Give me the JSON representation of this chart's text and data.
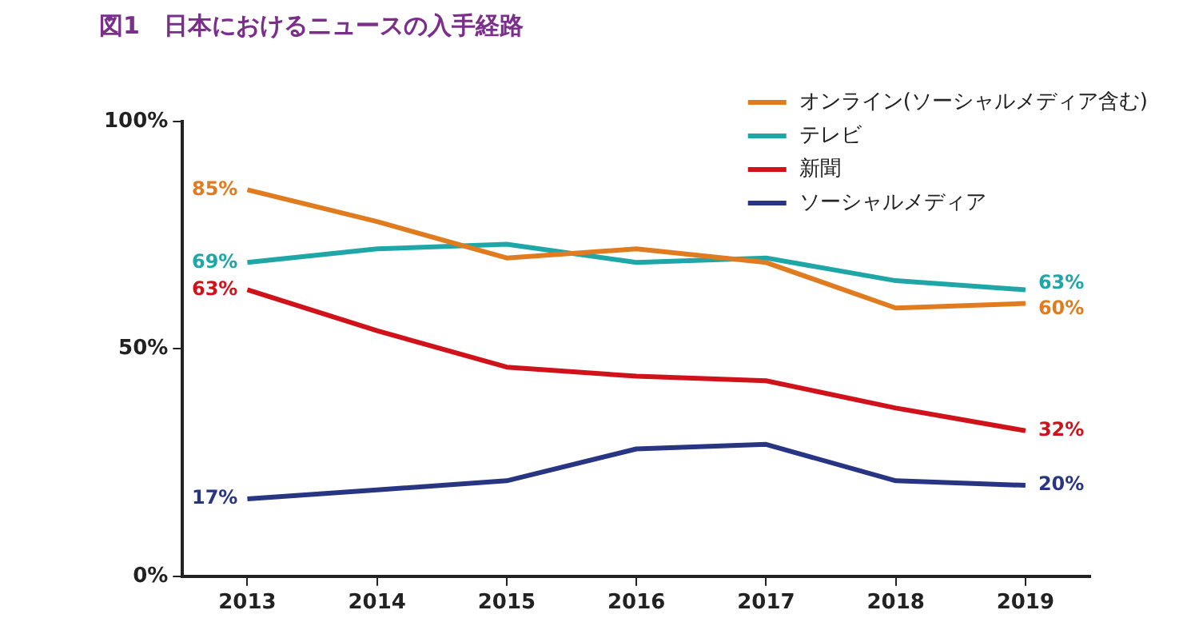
{
  "chart_data": {
    "type": "line",
    "title": "図1　日本におけるニュースの入手経路",
    "categories": [
      "2013",
      "2014",
      "2015",
      "2016",
      "2017",
      "2018",
      "2019"
    ],
    "series": [
      {
        "name": "オンライン(ソーシャルメディア含む)",
        "color": "#e07b1f",
        "values": [
          85,
          78,
          70,
          72,
          69,
          59,
          60
        ],
        "value_labels": [
          "85%",
          null,
          null,
          null,
          null,
          null,
          "60%"
        ]
      },
      {
        "name": "テレビ",
        "color": "#1fa6a6",
        "values": [
          69,
          72,
          73,
          69,
          70,
          65,
          63
        ],
        "value_labels": [
          "69%",
          null,
          null,
          null,
          null,
          null,
          "63%"
        ]
      },
      {
        "name": "新聞",
        "color": "#d0121b",
        "values": [
          63,
          54,
          46,
          44,
          43,
          37,
          32
        ],
        "value_labels": [
          "63%",
          null,
          null,
          null,
          null,
          null,
          "32%"
        ]
      },
      {
        "name": "ソーシャルメディア",
        "color": "#283582",
        "values": [
          17,
          19,
          21,
          28,
          29,
          21,
          20
        ],
        "value_labels": [
          "17%",
          null,
          null,
          null,
          null,
          null,
          "20%"
        ]
      }
    ],
    "ylim": [
      0,
      100
    ],
    "yticks": [
      {
        "value": 0,
        "label": "0%"
      },
      {
        "value": 50,
        "label": "50%"
      },
      {
        "value": 100,
        "label": "100%"
      }
    ],
    "legend": "top right",
    "marker": "none",
    "line_style": "solid"
  }
}
